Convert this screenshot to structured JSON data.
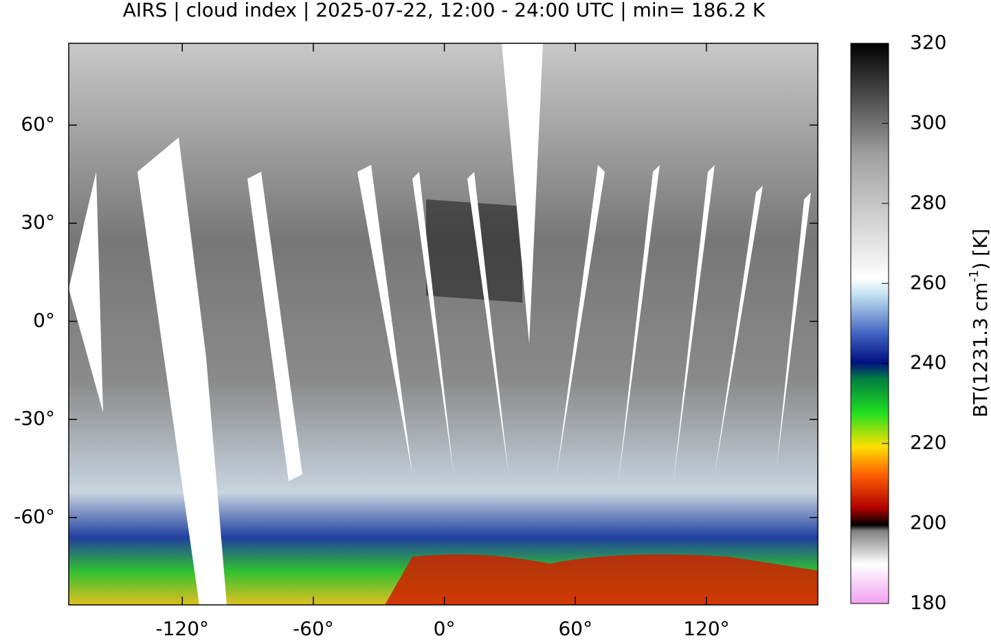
{
  "title": "AIRS | cloud index | 2025-07-22, 12:00 - 24:00 UTC | min= 186.2 K",
  "map": {
    "xlim": [
      -172,
      171
    ],
    "ylim": [
      -86.7,
      85
    ],
    "xticks": [
      {
        "value": -120,
        "label": "-120°"
      },
      {
        "value": -60,
        "label": "-60°"
      },
      {
        "value": 0,
        "label": "0°"
      },
      {
        "value": 60,
        "label": "60°"
      },
      {
        "value": 120,
        "label": "120°"
      }
    ],
    "yticks": [
      {
        "value": 60,
        "label": "60°"
      },
      {
        "value": 30,
        "label": "30°"
      },
      {
        "value": 0,
        "label": "0°"
      },
      {
        "value": -30,
        "label": "-30°"
      },
      {
        "value": -60,
        "label": "-60°"
      }
    ]
  },
  "colorbar": {
    "label": "BT(1231.3 cm",
    "label_superscript": "-1",
    "label_end": ") [K]",
    "lim": [
      180,
      320
    ],
    "ticks": [
      180,
      200,
      220,
      240,
      260,
      280,
      300,
      320
    ]
  }
}
